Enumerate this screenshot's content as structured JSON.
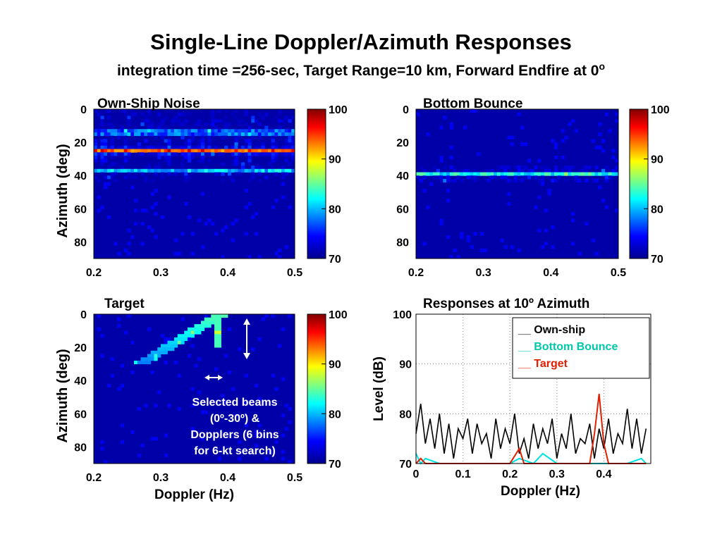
{
  "page": {
    "title": "Single-Line Doppler/Azimuth Responses",
    "subtitle_main": "integration time =256-sec, Target Range=10 km, Forward Endfire at 0",
    "subtitle_sup": "o"
  },
  "colormap": {
    "stops": [
      "#00008f",
      "#0000ff",
      "#00ffff",
      "#ffff00",
      "#ff0000",
      "#800000"
    ],
    "range": [
      70,
      100
    ],
    "ticks": [
      "100",
      "90",
      "80",
      "70"
    ]
  },
  "chart_data": [
    {
      "type": "heatmap",
      "title": "Own-Ship Noise",
      "xlabel": "",
      "ylabel": "Azimuth (deg)",
      "xlim": [
        0.2,
        0.5
      ],
      "ylim": [
        0,
        90
      ],
      "xticks": [
        "0.2",
        "0.3",
        "0.4",
        "0.5"
      ],
      "yticks": [
        "0",
        "20",
        "40",
        "60",
        "80"
      ],
      "colorbar_ticks": [
        "100",
        "90",
        "80",
        "70"
      ],
      "description_band": {
        "azimuth_center_deg": 25,
        "peak_level_db": 93,
        "secondary_band_deg": 38
      }
    },
    {
      "type": "heatmap",
      "title": "Bottom Bounce",
      "xlabel": "",
      "ylabel": "",
      "xlim": [
        0.2,
        0.5
      ],
      "ylim": [
        0,
        90
      ],
      "xticks": [
        "0.2",
        "0.3",
        "0.4",
        "0.5"
      ],
      "yticks": [
        "0",
        "20",
        "40",
        "60",
        "80"
      ],
      "colorbar_ticks": [
        "100",
        "90",
        "80",
        "70"
      ],
      "description_band": {
        "azimuth_center_deg": 40,
        "peak_level_db": 82
      }
    },
    {
      "type": "heatmap",
      "title": "Target",
      "xlabel": "Doppler (Hz)",
      "ylabel": "Azimuth (deg)",
      "xlim": [
        0.2,
        0.5
      ],
      "ylim": [
        0,
        90
      ],
      "xticks": [
        "0.2",
        "0.3",
        "0.4",
        "0.5"
      ],
      "yticks": [
        "0",
        "20",
        "40",
        "60",
        "80"
      ],
      "colorbar_ticks": [
        "100",
        "90",
        "80",
        "70"
      ],
      "target_peak": {
        "doppler_hz": 0.385,
        "azimuth_range_deg": [
          0,
          20
        ],
        "level_db": 84
      },
      "annotation": [
        "Selected beams",
        "(0º-30º) &",
        "Dopplers (6 bins",
        "for 6-kt search)"
      ]
    },
    {
      "type": "line",
      "title": "Responses at 10º Azimuth",
      "xlabel": "Doppler (Hz)",
      "ylabel": "Level (dB)",
      "xlim": [
        0,
        0.5
      ],
      "ylim": [
        70,
        100
      ],
      "xticks": [
        "0",
        "0.1",
        "0.2",
        "0.3",
        "0.4"
      ],
      "yticks": [
        "100",
        "90",
        "80",
        "70"
      ],
      "grid": true,
      "legend_position": "top-right",
      "series": [
        {
          "name": "Own-ship",
          "legend_prefix": "__",
          "color": "#000000",
          "x": [
            0.0,
            0.01,
            0.02,
            0.03,
            0.04,
            0.05,
            0.06,
            0.07,
            0.08,
            0.09,
            0.1,
            0.11,
            0.12,
            0.13,
            0.14,
            0.15,
            0.16,
            0.17,
            0.18,
            0.19,
            0.2,
            0.21,
            0.22,
            0.23,
            0.24,
            0.25,
            0.26,
            0.27,
            0.28,
            0.29,
            0.3,
            0.31,
            0.32,
            0.33,
            0.34,
            0.35,
            0.36,
            0.37,
            0.38,
            0.39,
            0.4,
            0.41,
            0.42,
            0.43,
            0.44,
            0.45,
            0.46,
            0.47,
            0.48,
            0.49
          ],
          "y": [
            76,
            82,
            74,
            79,
            73,
            80,
            72,
            78,
            71,
            77,
            75,
            79,
            72,
            78,
            74,
            76,
            71,
            79,
            73,
            77,
            74,
            80,
            72,
            75,
            71,
            78,
            73,
            77,
            74,
            79,
            71,
            76,
            73,
            80,
            72,
            75,
            74,
            78,
            71,
            77,
            73,
            79,
            72,
            76,
            74,
            81,
            73,
            79,
            72,
            77
          ]
        },
        {
          "name": "Bottom Bounce",
          "legend_prefix": "__",
          "color": "#00e0e0",
          "x": [
            0.0,
            0.01,
            0.02,
            0.05,
            0.1,
            0.15,
            0.2,
            0.22,
            0.25,
            0.27,
            0.3,
            0.35,
            0.4,
            0.45,
            0.48,
            0.49
          ],
          "y": [
            72,
            70,
            71,
            70,
            70,
            70,
            70,
            71,
            70,
            72,
            70,
            70,
            70,
            70,
            71,
            70
          ]
        },
        {
          "name": "Target",
          "legend_prefix": "__",
          "color": "#e02000",
          "x": [
            0.0,
            0.01,
            0.02,
            0.1,
            0.2,
            0.22,
            0.23,
            0.3,
            0.37,
            0.38,
            0.39,
            0.4,
            0.41,
            0.45,
            0.49
          ],
          "y": [
            70,
            71,
            70,
            70,
            70,
            73,
            70,
            70,
            70,
            76,
            84,
            74,
            70,
            70,
            70
          ]
        }
      ]
    }
  ]
}
